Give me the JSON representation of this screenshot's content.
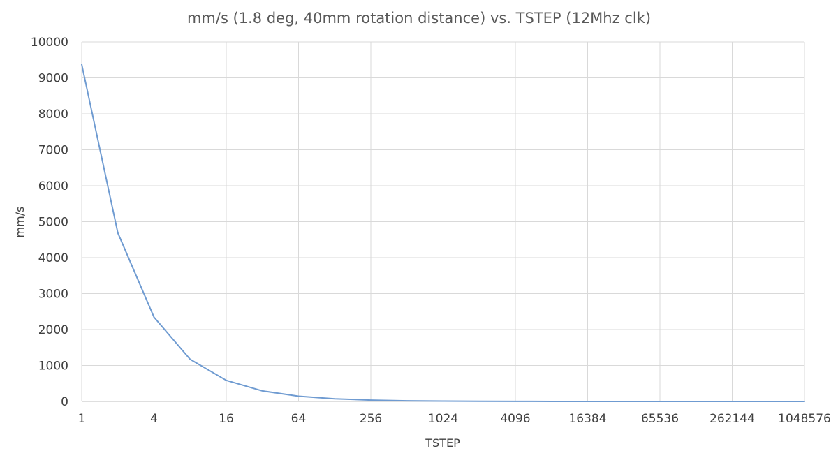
{
  "chart_data": {
    "type": "line",
    "title": "mm/s (1.8 deg, 40mm rotation distance) vs. TSTEP (12Mhz clk)",
    "xlabel": "TSTEP",
    "ylabel": "mm/s",
    "x_scale": "log2",
    "x_tick_labels": [
      "1",
      "4",
      "16",
      "64",
      "256",
      "1024",
      "4096",
      "16384",
      "65536",
      "262144",
      "1048576"
    ],
    "xlim": [
      1,
      1048576
    ],
    "ylim": [
      0,
      10000
    ],
    "y_ticks": [
      0,
      1000,
      2000,
      3000,
      4000,
      5000,
      6000,
      7000,
      8000,
      9000,
      10000
    ],
    "grid": true,
    "legend": "none",
    "series": [
      {
        "color": "#6f9bd1",
        "x": [
          1,
          2,
          4,
          8,
          16,
          32,
          64,
          128,
          256,
          512,
          1024,
          2048,
          4096,
          8192,
          16384,
          32768,
          65536,
          131072,
          262144,
          524288,
          1048576
        ],
        "y": [
          9375,
          4688,
          2344,
          1172,
          586,
          293,
          146,
          73,
          37,
          18,
          9,
          4.6,
          2.3,
          1.1,
          0.6,
          0.3,
          0.14,
          0.07,
          0.04,
          0.02,
          0.01
        ]
      }
    ]
  }
}
